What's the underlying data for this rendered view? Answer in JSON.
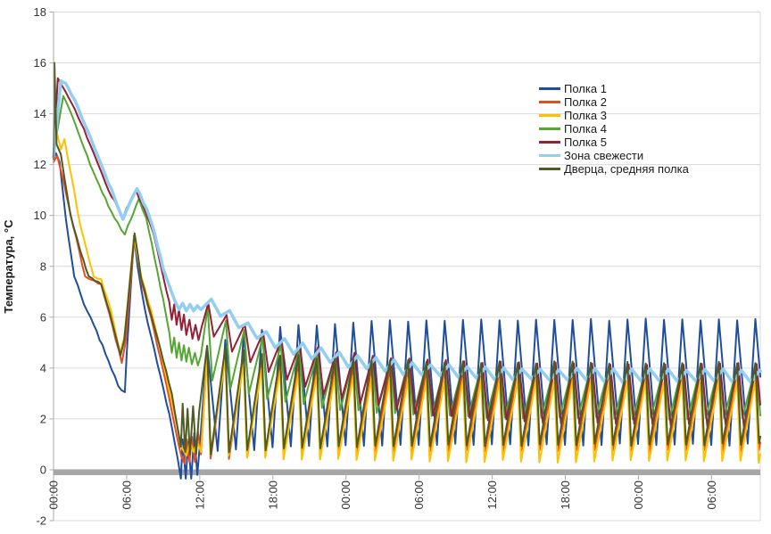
{
  "chart_data": {
    "type": "line",
    "title": "",
    "xlabel": "",
    "ylabel": "Температура, °C",
    "x_unit": "time of day (hh:mm), ~2.5 days span",
    "x_range_hours": [
      0,
      58
    ],
    "ylim": [
      -2,
      18
    ],
    "y_ticks": [
      -2,
      0,
      2,
      4,
      6,
      8,
      10,
      12,
      14,
      16,
      18
    ],
    "y_tick_labels": [
      "-2",
      "0",
      "2",
      "4",
      "6",
      "8",
      "10",
      "12",
      "14",
      "16",
      "18"
    ],
    "x_tick_hours": [
      0,
      6,
      12,
      18,
      24,
      30,
      36,
      42,
      48,
      54
    ],
    "x_tick_labels": [
      "00:00",
      "06:00",
      "12:00",
      "18:00",
      "00:00",
      "06:00",
      "12:00",
      "18:00",
      "00:00",
      "06:00"
    ],
    "grid": true,
    "legend_position": "right-top-inside",
    "colors": {
      "grid": "#D9D9D9",
      "axis": "#ABABAB",
      "zero_band": "#A6A6A6",
      "tick_text": "#333333",
      "axis_title_text": "#1a1a1a",
      "background": "#FFFFFF"
    },
    "series": [
      {
        "name": "Полка 1",
        "color": "#1F4E9C",
        "stroke_width": 2,
        "transient_points": [
          [
            0,
            12.2
          ],
          [
            0.2,
            12.45
          ],
          [
            0.5,
            12.1
          ],
          [
            1.0,
            9.9
          ],
          [
            1.7,
            7.6
          ],
          [
            2.5,
            6.5
          ],
          [
            3.3,
            5.7
          ],
          [
            4.5,
            4.3
          ],
          [
            5.3,
            3.3
          ],
          [
            5.85,
            3.05
          ],
          [
            6.0,
            4.5
          ],
          [
            6.6,
            9.2
          ],
          [
            6.9,
            8.0
          ],
          [
            7.5,
            6.3
          ],
          [
            8.5,
            4.2
          ],
          [
            9.5,
            2.2
          ],
          [
            10.2,
            0.4
          ],
          [
            10.45,
            -0.35
          ],
          [
            10.6,
            1.2
          ],
          [
            10.85,
            -0.35
          ],
          [
            11.05,
            1.1
          ],
          [
            11.3,
            -0.35
          ],
          [
            11.55,
            1.45
          ],
          [
            11.8,
            -0.2
          ],
          [
            12.05,
            1.2
          ]
        ],
        "oscillation": {
          "first_peak_h": 12.6,
          "period_h": 1.5,
          "fall_frac": 0.58,
          "peak_start": 4.9,
          "peak_steady": 5.9,
          "peak_tau_cycles": 3.5,
          "trough_start": 0.7,
          "trough_steady": 1.0,
          "trough_tau_cycles": 4
        }
      },
      {
        "name": "Полка 2",
        "color": "#E84C22",
        "stroke_width": 2,
        "transient_points": [
          [
            0,
            12.1
          ],
          [
            0.3,
            12.35
          ],
          [
            0.8,
            11.4
          ],
          [
            1.6,
            9.6
          ],
          [
            2.6,
            7.6
          ],
          [
            3.9,
            7.3
          ],
          [
            4.6,
            6.1
          ],
          [
            5.6,
            4.2
          ],
          [
            5.9,
            5.0
          ],
          [
            6.65,
            9.2
          ],
          [
            7.2,
            7.4
          ],
          [
            8.0,
            6.0
          ],
          [
            9.0,
            3.9
          ],
          [
            10.0,
            1.6
          ],
          [
            10.5,
            0.5
          ],
          [
            10.75,
            0.25
          ],
          [
            10.95,
            1.2
          ],
          [
            11.15,
            0.3
          ],
          [
            11.35,
            1.3
          ],
          [
            11.6,
            0.3
          ],
          [
            11.85,
            1.5
          ],
          [
            12.1,
            0.6
          ]
        ],
        "oscillation": {
          "first_peak_h": 12.62,
          "period_h": 1.5,
          "fall_frac": 0.18,
          "peak_start": 4.6,
          "peak_steady": 3.95,
          "peak_tau_cycles": 5,
          "trough_start": 0.4,
          "trough_steady": 0.75,
          "trough_tau_cycles": 5
        }
      },
      {
        "name": "Полка 3",
        "color": "#FFC000",
        "stroke_width": 2,
        "transient_points": [
          [
            0,
            12.3
          ],
          [
            0.3,
            13.2
          ],
          [
            0.6,
            12.6
          ],
          [
            0.9,
            13.0
          ],
          [
            1.4,
            11.7
          ],
          [
            2.2,
            9.6
          ],
          [
            3.3,
            7.6
          ],
          [
            3.9,
            7.5
          ],
          [
            4.7,
            6.3
          ],
          [
            5.45,
            4.6
          ],
          [
            5.8,
            5.2
          ],
          [
            6.6,
            9.15
          ],
          [
            7.2,
            7.6
          ],
          [
            8.0,
            6.3
          ],
          [
            9.0,
            4.2
          ],
          [
            10.0,
            2.0
          ],
          [
            10.6,
            0.8
          ],
          [
            10.9,
            0.55
          ],
          [
            11.2,
            1.1
          ],
          [
            11.5,
            0.7
          ],
          [
            11.8,
            1.1
          ],
          [
            12.1,
            0.7
          ]
        ],
        "oscillation": {
          "first_peak_h": 12.6,
          "period_h": 1.5,
          "fall_frac": 0.18,
          "peak_start": 4.5,
          "peak_steady": 3.45,
          "peak_tau_cycles": 5,
          "trough_start": 0.55,
          "trough_steady": 0.32,
          "trough_tau_cycles": 6
        }
      },
      {
        "name": "Полка 4",
        "color": "#56A632",
        "stroke_width": 2,
        "transient_points": [
          [
            0,
            12.4
          ],
          [
            0.8,
            14.7
          ],
          [
            1.1,
            14.4
          ],
          [
            2.0,
            13.3
          ],
          [
            3.0,
            12.0
          ],
          [
            4.0,
            10.9
          ],
          [
            5.0,
            9.9
          ],
          [
            5.85,
            9.25
          ],
          [
            6.1,
            9.6
          ],
          [
            7.0,
            10.65
          ],
          [
            7.6,
            9.9
          ],
          [
            8.3,
            8.3
          ],
          [
            9.0,
            6.7
          ],
          [
            9.5,
            5.4
          ],
          [
            9.7,
            4.6
          ],
          [
            9.9,
            5.2
          ],
          [
            10.1,
            4.4
          ],
          [
            10.3,
            5.0
          ],
          [
            10.5,
            4.3
          ],
          [
            10.7,
            4.9
          ],
          [
            10.9,
            4.25
          ],
          [
            11.1,
            4.8
          ],
          [
            11.35,
            4.15
          ],
          [
            11.6,
            4.6
          ],
          [
            11.85,
            4.1
          ],
          [
            12.1,
            4.5
          ]
        ],
        "oscillation": {
          "first_peak_h": 12.65,
          "period_h": 1.5,
          "fall_frac": 0.25,
          "peak_start": 6.4,
          "peak_steady": 4.1,
          "peak_tau_cycles": 4,
          "trough_start": 3.5,
          "trough_steady": 2.0,
          "trough_tau_cycles": 5
        }
      },
      {
        "name": "Полка 5",
        "color": "#942138",
        "stroke_width": 2,
        "transient_points": [
          [
            0,
            12.4
          ],
          [
            0.35,
            15.4
          ],
          [
            0.7,
            15.1
          ],
          [
            1.5,
            14.4
          ],
          [
            2.5,
            13.4
          ],
          [
            3.5,
            12.2
          ],
          [
            4.5,
            11.0
          ],
          [
            5.7,
            9.9
          ],
          [
            6.0,
            10.3
          ],
          [
            6.8,
            10.95
          ],
          [
            7.5,
            10.2
          ],
          [
            8.2,
            9.3
          ],
          [
            9.0,
            7.6
          ],
          [
            9.5,
            6.6
          ],
          [
            9.7,
            5.9
          ],
          [
            9.9,
            6.5
          ],
          [
            10.1,
            5.7
          ],
          [
            10.3,
            6.3
          ],
          [
            10.5,
            5.5
          ],
          [
            10.7,
            6.1
          ],
          [
            10.9,
            5.3
          ],
          [
            11.15,
            5.9
          ],
          [
            11.4,
            5.15
          ],
          [
            11.65,
            5.7
          ],
          [
            11.9,
            5.1
          ],
          [
            12.15,
            5.6
          ]
        ],
        "oscillation": {
          "first_peak_h": 12.7,
          "period_h": 1.5,
          "fall_frac": 0.3,
          "peak_start": 6.55,
          "peak_steady": 4.15,
          "peak_tau_cycles": 4.5,
          "trough_start": 5.2,
          "trough_steady": 1.7,
          "trough_tau_cycles": 6
        }
      },
      {
        "name": "Зона свежести",
        "color": "#93CDF1",
        "stroke_width": 3.5,
        "transient_points": [
          [
            0,
            12.3
          ],
          [
            0.6,
            15.3
          ],
          [
            1.0,
            15.2
          ],
          [
            2.0,
            14.25
          ],
          [
            3.0,
            13.1
          ],
          [
            4.0,
            11.9
          ],
          [
            5.0,
            10.7
          ],
          [
            5.7,
            9.85
          ],
          [
            6.0,
            10.2
          ],
          [
            6.85,
            11.05
          ],
          [
            7.6,
            10.3
          ],
          [
            8.3,
            9.3
          ],
          [
            9.0,
            7.9
          ],
          [
            9.6,
            7.1
          ],
          [
            10.0,
            6.6
          ],
          [
            10.3,
            6.3
          ],
          [
            10.6,
            6.55
          ],
          [
            10.9,
            6.25
          ],
          [
            11.2,
            6.5
          ],
          [
            11.5,
            6.25
          ],
          [
            11.8,
            6.45
          ],
          [
            12.1,
            6.3
          ]
        ],
        "oscillation": {
          "first_peak_h": 12.95,
          "period_h": 1.5,
          "fall_frac": 0.5,
          "peak_start": 6.75,
          "peak_steady": 3.9,
          "peak_tau_cycles": 5,
          "trough_start": 6.0,
          "trough_steady": 3.45,
          "trough_tau_cycles": 5
        }
      },
      {
        "name": "Дверца, средняя полка",
        "color": "#4E5B23",
        "stroke_width": 2,
        "transient_points": [
          [
            0,
            12.2
          ],
          [
            0.07,
            16.0
          ],
          [
            0.25,
            12.8
          ],
          [
            0.6,
            12.4
          ],
          [
            1.4,
            10.0
          ],
          [
            2.2,
            8.6
          ],
          [
            2.9,
            7.6
          ],
          [
            3.9,
            7.3
          ],
          [
            4.6,
            6.2
          ],
          [
            5.5,
            4.5
          ],
          [
            5.8,
            5.1
          ],
          [
            6.65,
            9.3
          ],
          [
            7.2,
            7.5
          ],
          [
            8.0,
            6.1
          ],
          [
            9.0,
            4.3
          ],
          [
            9.7,
            3.0
          ],
          [
            10.2,
            1.6
          ],
          [
            10.45,
            0.9
          ],
          [
            10.6,
            2.6
          ],
          [
            10.8,
            0.7
          ],
          [
            11.0,
            2.4
          ],
          [
            11.2,
            0.6
          ],
          [
            11.45,
            2.5
          ],
          [
            11.7,
            0.6
          ],
          [
            11.95,
            2.3
          ]
        ],
        "oscillation": {
          "first_peak_h": 12.6,
          "period_h": 1.5,
          "fall_frac": 0.2,
          "peak_start": 4.9,
          "peak_steady": 4.2,
          "peak_tau_cycles": 5,
          "trough_start": 0.6,
          "trough_steady": 1.0,
          "trough_tau_cycles": 5
        }
      }
    ]
  }
}
